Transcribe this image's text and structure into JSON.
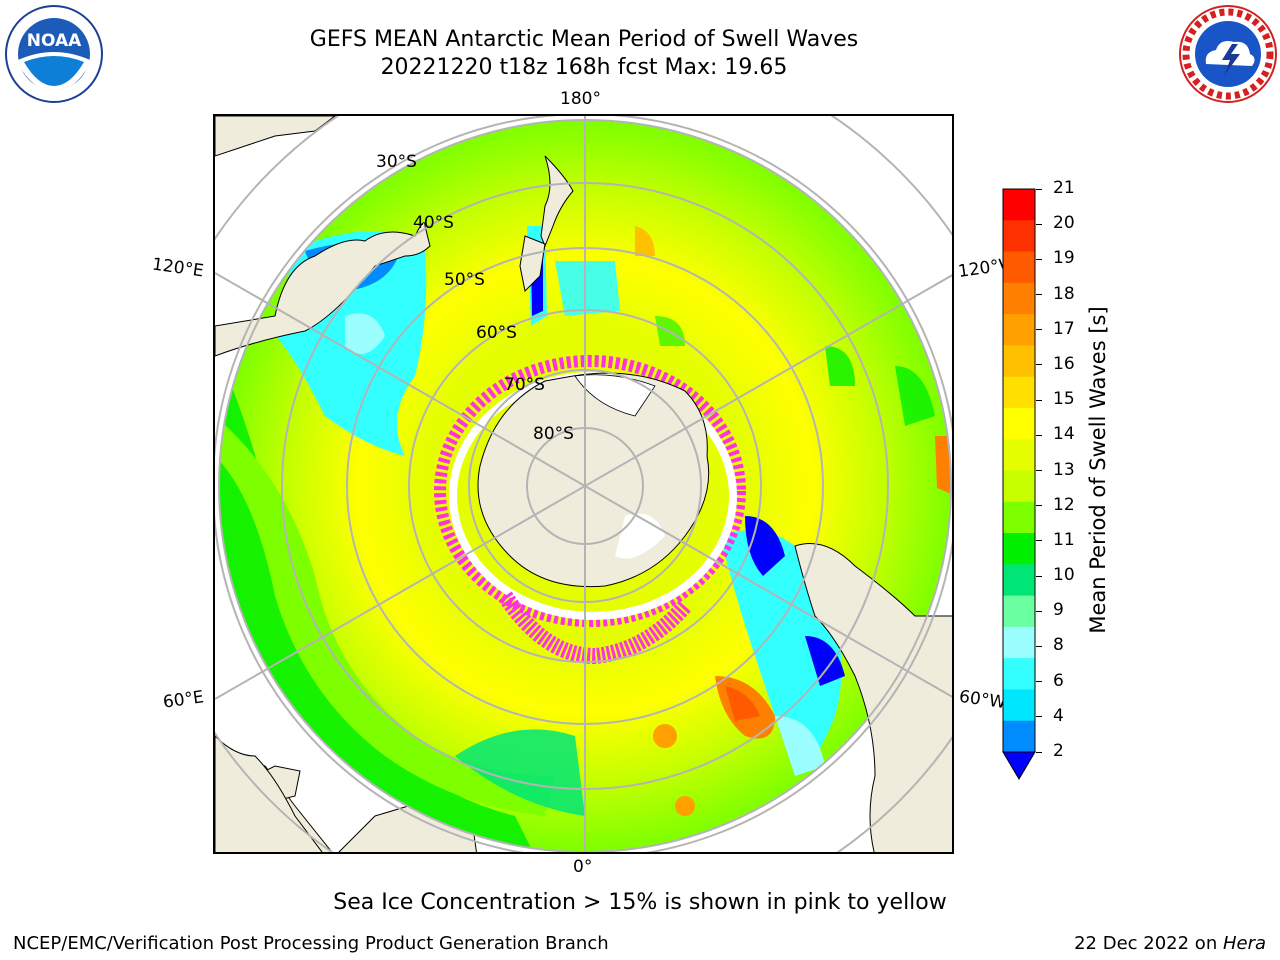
{
  "header": {
    "title_line1": "GEFS MEAN Antarctic Mean Period of Swell Waves",
    "title_line2": "20221220 t18z 168h fcst   Max: 19.65"
  },
  "logos": {
    "noaa_icon": "noaa-logo",
    "noaa_text": "NOAA",
    "nws_icon": "national-weather-service-logo",
    "nws_text": "NATIONAL WEATHER SERVICE"
  },
  "map": {
    "projection": "south-polar-stereographic",
    "longitude_labels": {
      "top": "180°",
      "bottom": "0°",
      "upper_left": "120°E",
      "upper_right": "120°W",
      "lower_left": "60°E",
      "lower_right": "60°W"
    },
    "latitude_labels": [
      "30°S",
      "40°S",
      "50°S",
      "60°S",
      "70°S",
      "80°S"
    ],
    "colors": {
      "land": "#efecdc",
      "coastline": "#000000",
      "gridline": "#b4b4b4",
      "sea_ice": "#ff33dd"
    }
  },
  "colorbar": {
    "label": "Mean Period of Swell Waves [s]",
    "ticks": [
      "21",
      "20",
      "19",
      "18",
      "17",
      "16",
      "15",
      "14",
      "13",
      "12",
      "11",
      "10",
      "9",
      "8",
      "6",
      "4",
      "2"
    ],
    "colors_top_to_bottom": [
      "#ff0000",
      "#ff3000",
      "#ff5a00",
      "#ff8000",
      "#ffa000",
      "#ffc000",
      "#ffe000",
      "#ffff00",
      "#e6ff00",
      "#c8ff00",
      "#7dff00",
      "#00f000",
      "#00e676",
      "#6affa0",
      "#9bffff",
      "#33ffff",
      "#00e6ff",
      "#008cff"
    ],
    "extend_color": "#0000ff"
  },
  "footer": {
    "note": "Sea Ice Concentration > 15% is shown in pink to yellow",
    "credit": "NCEP/EMC/Verification Post Processing Product Generation Branch",
    "date": "22 Dec 2022 on ",
    "machine": "Hera"
  }
}
